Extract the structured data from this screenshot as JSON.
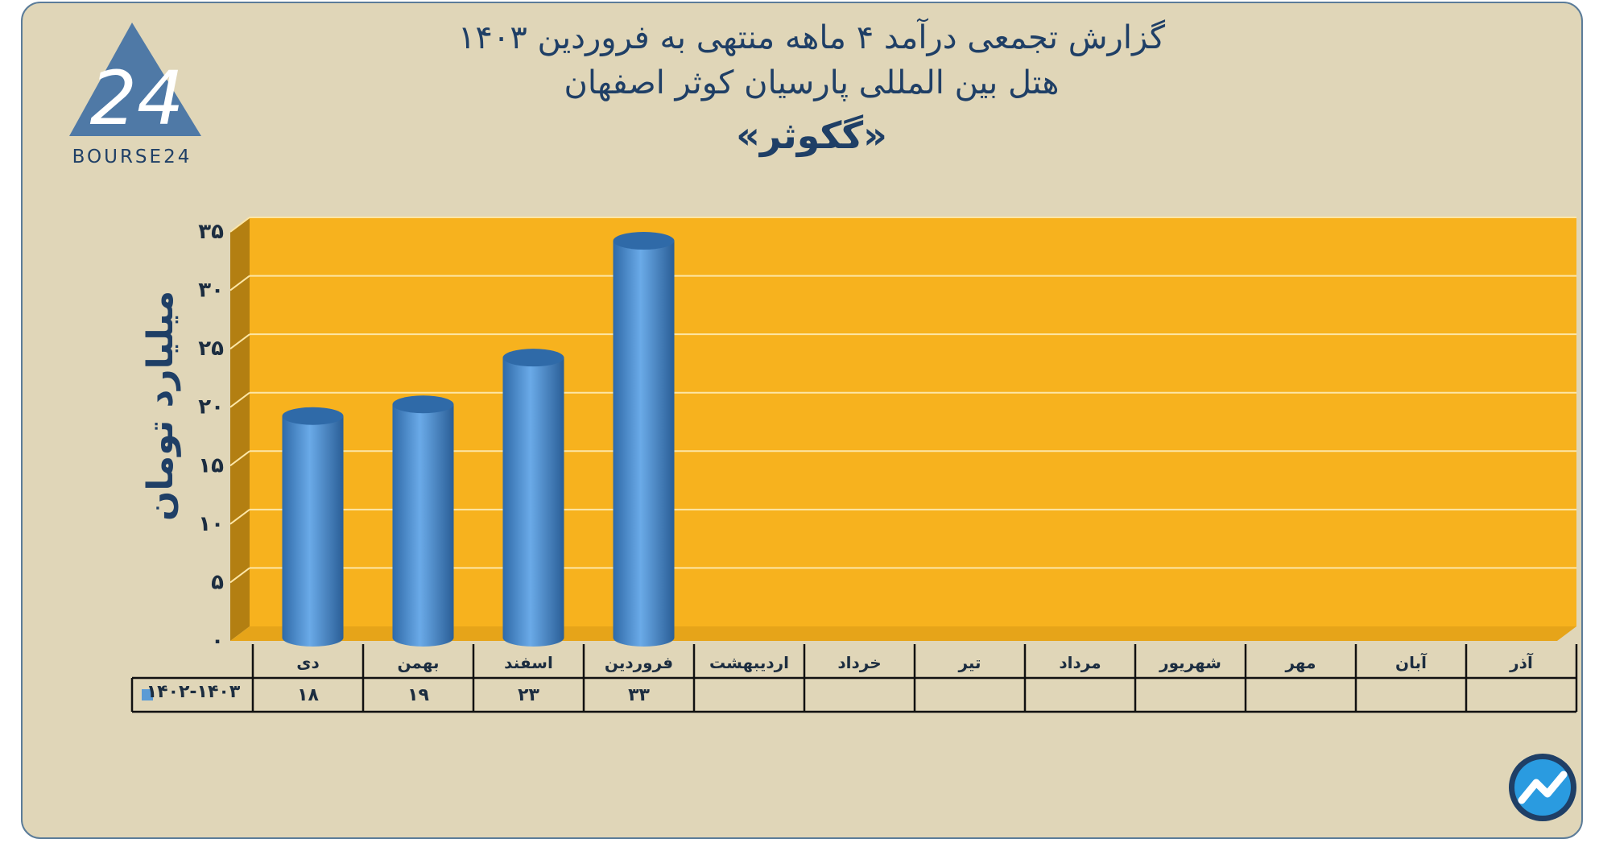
{
  "header": {
    "title_line1": "گزارش تجمعی درآمد ۴ ماهه منتهی به فروردین ۱۴۰۳",
    "title_line2": "هتل بین المللی پارسیان کوثر اصفهان",
    "title_line3": "«گکوثر»"
  },
  "logo": {
    "mark": "24",
    "text": "BOURSE24"
  },
  "colors": {
    "background": "#e0d6b8",
    "plot": "#f7b21e",
    "bar": "#5b9bd5",
    "title": "#1f3f66"
  },
  "chart_data": {
    "type": "bar",
    "categories": [
      "دی",
      "بهمن",
      "اسفند",
      "فروردین",
      "اردیبهشت",
      "خرداد",
      "تیر",
      "مرداد",
      "شهریور",
      "مهر",
      "آبان",
      "آذر"
    ],
    "series": [
      {
        "name": "۱۴۰۲-۱۴۰۳",
        "values": [
          18,
          19,
          23,
          33,
          null,
          null,
          null,
          null,
          null,
          null,
          null,
          null
        ],
        "labels": [
          "۱۸",
          "۱۹",
          "۲۳",
          "۳۳",
          "",
          "",
          "",
          "",
          "",
          "",
          "",
          ""
        ]
      }
    ],
    "ylabel": "میلیارد تومان",
    "ylim": [
      0,
      35
    ],
    "yticks": [
      0,
      5,
      10,
      15,
      20,
      25,
      30,
      35
    ],
    "ytick_labels": [
      "۰",
      "۵",
      "۱۰",
      "۱۵",
      "۲۰",
      "۲۵",
      "۳۰",
      "۳۵"
    ],
    "grid": true,
    "legend": "data-table"
  }
}
